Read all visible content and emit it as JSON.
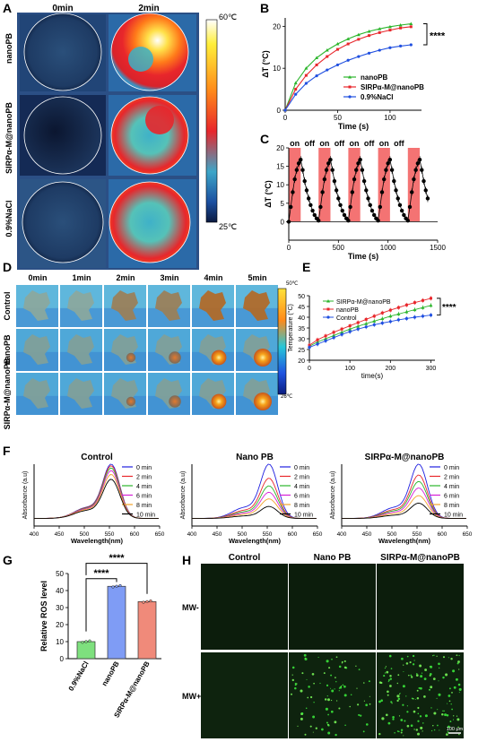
{
  "panels": {
    "A": {
      "letter": "A",
      "col_labels": [
        "0min",
        "2min"
      ],
      "row_labels": [
        "nanoPB",
        "SIRPα-M@nanoPB",
        "0.9%NaCl"
      ],
      "scale_max": "60℃",
      "scale_min": "25℃"
    },
    "D": {
      "letter": "D",
      "col_labels": [
        "0min",
        "1min",
        "2min",
        "3min",
        "4min",
        "5min"
      ],
      "row_labels": [
        "Control",
        "nanoPB",
        "SIRPα-M@nanoPB"
      ],
      "scale_max": "50℃",
      "scale_min": "26℃"
    },
    "H": {
      "letter": "H",
      "col_labels": [
        "Control",
        "Nano PB",
        "SIRPα-M@nanoPB"
      ],
      "row_labels": [
        "MW-",
        "MW+"
      ],
      "scalebar": "100 μm"
    }
  },
  "chart_data": [
    {
      "panel": "B",
      "type": "line",
      "xlabel": "Time (s)",
      "ylabel": "ΔT (°C)",
      "xlim": [
        0,
        130
      ],
      "ylim": [
        0,
        22
      ],
      "xticks": [
        0,
        50,
        100
      ],
      "yticks": [
        0,
        10,
        20
      ],
      "x": [
        0,
        10,
        20,
        30,
        40,
        50,
        60,
        70,
        80,
        90,
        100,
        110,
        120
      ],
      "series": [
        {
          "name": "nanoPB",
          "color": "#2bb52b",
          "values": [
            0,
            6.5,
            10,
            12.5,
            14.3,
            15.8,
            17,
            18,
            18.8,
            19.4,
            19.9,
            20.3,
            20.6
          ]
        },
        {
          "name": "SIRPα-M@nanoPB",
          "color": "#e8262b",
          "values": [
            0,
            5,
            8.3,
            10.8,
            12.8,
            14.5,
            15.8,
            16.9,
            17.8,
            18.5,
            19.1,
            19.6,
            19.9
          ]
        },
        {
          "name": "0.9%NaCl",
          "color": "#1f4fe0",
          "values": [
            0,
            3.8,
            6.4,
            8.2,
            9.6,
            10.8,
            11.9,
            12.8,
            13.6,
            14.3,
            14.9,
            15.3,
            15.6
          ]
        }
      ],
      "legend": "bottom-right",
      "annotation": "****"
    },
    {
      "panel": "C",
      "type": "line",
      "xlabel": "Time (s)",
      "ylabel": "ΔT (°C)",
      "xlim": [
        0,
        1500
      ],
      "ylim": [
        -5,
        20
      ],
      "xticks": [
        0,
        500,
        1000,
        1500
      ],
      "yticks": [
        0,
        5,
        10,
        15,
        20
      ],
      "on_off_labels": [
        "on",
        "off"
      ],
      "on_intervals": [
        [
          0,
          120
        ],
        [
          300,
          420
        ],
        [
          600,
          720
        ],
        [
          900,
          1020
        ],
        [
          1200,
          1320
        ]
      ],
      "series": [
        {
          "name": "",
          "color": "#000000",
          "x": [
            0,
            20,
            40,
            60,
            80,
            100,
            120,
            140,
            160,
            180,
            200,
            220,
            240,
            260,
            280,
            300,
            320,
            340,
            360,
            380,
            400,
            420,
            440,
            460,
            480,
            500,
            520,
            540,
            560,
            580,
            600,
            620,
            640,
            660,
            680,
            700,
            720,
            740,
            760,
            780,
            800,
            820,
            840,
            860,
            880,
            900,
            920,
            940,
            960,
            980,
            1000,
            1020,
            1040,
            1060,
            1080,
            1100,
            1120,
            1140,
            1160,
            1180,
            1200,
            1220,
            1240,
            1260,
            1280,
            1300,
            1320,
            1340,
            1360,
            1380,
            1400
          ],
          "values": [
            0,
            4,
            8,
            11.5,
            14,
            15.8,
            16.8,
            14,
            11,
            8.5,
            6.3,
            4.5,
            3,
            1.8,
            0.9,
            0.3,
            4,
            8,
            11.5,
            14,
            15.8,
            16.8,
            14,
            11,
            8.5,
            6.3,
            4.5,
            3,
            1.8,
            0.9,
            0.3,
            4,
            8,
            11.5,
            14,
            15.8,
            16.8,
            14,
            11,
            8.5,
            6.3,
            4.5,
            3,
            1.8,
            0.9,
            0.3,
            4,
            8,
            11.5,
            14,
            15.8,
            16.8,
            14,
            11,
            8.5,
            6.3,
            4.5,
            3,
            1.8,
            0.9,
            0.3,
            4,
            8,
            11.5,
            14,
            15.8,
            16.8,
            14,
            11,
            8.5,
            6.3
          ]
        }
      ]
    },
    {
      "panel": "E",
      "type": "line",
      "xlabel": "time(s)",
      "ylabel": "Temperature (°C)",
      "xlim": [
        0,
        310
      ],
      "ylim": [
        20,
        50
      ],
      "xticks": [
        0,
        100,
        200,
        300
      ],
      "yticks": [
        20,
        25,
        30,
        35,
        40,
        45,
        50
      ],
      "x": [
        0,
        20,
        40,
        60,
        80,
        100,
        120,
        140,
        160,
        180,
        200,
        220,
        240,
        260,
        280,
        300
      ],
      "series": [
        {
          "name": "SIRPα-M@nanoPB",
          "color": "#2bb52b",
          "values": [
            26.5,
            28.5,
            30,
            31.5,
            33,
            34.5,
            35.8,
            37,
            38.2,
            39.3,
            40.5,
            41.5,
            42.5,
            43.5,
            44.5,
            45.5
          ]
        },
        {
          "name": "nanoPB",
          "color": "#e8262b",
          "values": [
            27,
            29.5,
            31.3,
            33,
            34.5,
            36,
            37.5,
            39,
            40.5,
            42,
            43.3,
            44.5,
            45.7,
            46.8,
            47.8,
            48.8
          ]
        },
        {
          "name": "Control",
          "color": "#1f4fe0",
          "values": [
            26,
            27.5,
            29,
            30.5,
            32,
            33.3,
            34.5,
            35.5,
            36.5,
            37.3,
            38,
            38.8,
            39.4,
            40,
            40.5,
            41
          ]
        }
      ],
      "legend": "top-left",
      "annotation": "****"
    },
    {
      "panel": "F",
      "type": "line",
      "title": "Control",
      "xlabel": "Wavelength(nm)",
      "ylabel": "Absorbance  (a.u)",
      "xlim": [
        400,
        650
      ],
      "xticks": [
        400,
        450,
        500,
        550,
        600,
        650
      ],
      "series": [
        {
          "name": "0 min",
          "color": "#1f1fe0",
          "peak": 1.0
        },
        {
          "name": "2 min",
          "color": "#e8262b",
          "peak": 0.97
        },
        {
          "name": "4 min",
          "color": "#2bb52b",
          "peak": 0.93
        },
        {
          "name": "6 min",
          "color": "#d61fd6",
          "peak": 0.88
        },
        {
          "name": "8 min",
          "color": "#f2a22b",
          "peak": 0.81
        },
        {
          "name": "10 min",
          "color": "#000000",
          "peak": 0.72
        }
      ]
    },
    {
      "panel": "F2",
      "type": "line",
      "title": "Nano PB",
      "xlabel": "Wavelength(nm)",
      "ylabel": "Absorbance  (a.u)",
      "xlim": [
        400,
        650
      ],
      "xticks": [
        400,
        450,
        500,
        550,
        600,
        650
      ],
      "series": [
        {
          "name": "0 min",
          "color": "#1f1fe0",
          "peak": 1.0
        },
        {
          "name": "2 min",
          "color": "#e8262b",
          "peak": 0.74
        },
        {
          "name": "4 min",
          "color": "#2bb52b",
          "peak": 0.6
        },
        {
          "name": "6 min",
          "color": "#d61fd6",
          "peak": 0.48
        },
        {
          "name": "8 min",
          "color": "#f2a22b",
          "peak": 0.36
        },
        {
          "name": "10 min",
          "color": "#000000",
          "peak": 0.22
        }
      ]
    },
    {
      "panel": "F3",
      "type": "line",
      "title": "SIRPα-M@nanoPB",
      "xlabel": "Wavelength(nm)",
      "ylabel": "Absorbance  (a.u)",
      "xlim": [
        400,
        650
      ],
      "xticks": [
        400,
        450,
        500,
        550,
        600,
        650
      ],
      "series": [
        {
          "name": "0 min",
          "color": "#1f1fe0",
          "peak": 1.0
        },
        {
          "name": "2 min",
          "color": "#e8262b",
          "peak": 0.8
        },
        {
          "name": "4 min",
          "color": "#2bb52b",
          "peak": 0.68
        },
        {
          "name": "6 min",
          "color": "#d61fd6",
          "peak": 0.56
        },
        {
          "name": "8 min",
          "color": "#f2a22b",
          "peak": 0.42
        },
        {
          "name": "10 min",
          "color": "#000000",
          "peak": 0.28
        }
      ]
    },
    {
      "panel": "G",
      "type": "bar",
      "ylabel": "Relative ROS level",
      "ylim": [
        0,
        50
      ],
      "yticks": [
        0,
        10,
        20,
        30,
        40,
        50
      ],
      "categories": [
        "0.9%NaCl",
        "nanoPB",
        "SIRPα-M@nanoPB"
      ],
      "values": [
        10,
        42.5,
        33.5
      ],
      "colors": [
        "#7ee07e",
        "#7f9cf5",
        "#f08a7a"
      ],
      "annotations": [
        "****",
        "****"
      ]
    }
  ]
}
